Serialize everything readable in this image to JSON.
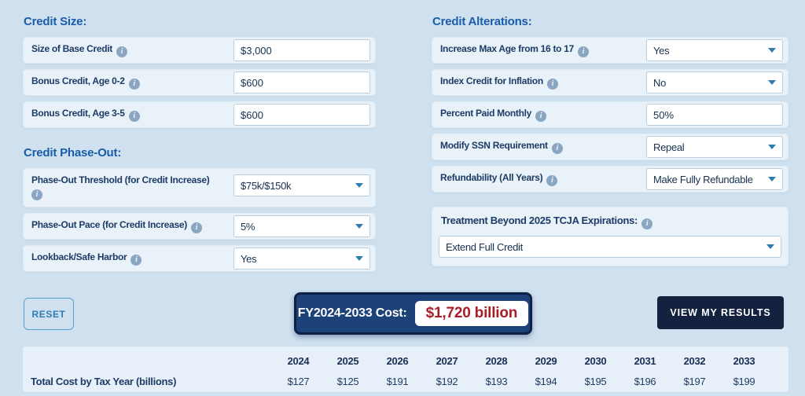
{
  "colors": {
    "page_bg": "#cfe1ef",
    "panel_bg": "#e9f1f9",
    "section_title_blue": "#1a5ca9",
    "label_navy": "#1d3c66",
    "cost_panel_navy": "#1d4179",
    "cost_panel_border": "#0d2145",
    "cost_value_red": "#ab1d28",
    "results_btn_navy": "#14213f",
    "reset_border_teal": "#55a1cd",
    "caret_blue": "#2e7cb0"
  },
  "sections": {
    "credit_size": {
      "title": "Credit Size:",
      "rows": [
        {
          "label": "Size of Base Credit",
          "value": "$3,000",
          "control": "input"
        },
        {
          "label": "Bonus Credit, Age 0-2",
          "value": "$600",
          "control": "input"
        },
        {
          "label": "Bonus Credit, Age 3-5",
          "value": "$600",
          "control": "input"
        }
      ]
    },
    "credit_phase_out": {
      "title": "Credit Phase-Out:",
      "rows": [
        {
          "label": "Phase-Out Threshold (for Credit Increase)",
          "value": "$75k/$150k",
          "control": "dropdown"
        },
        {
          "label": "Phase-Out Pace (for Credit Increase)",
          "value": "5%",
          "control": "dropdown"
        },
        {
          "label": "Lookback/Safe Harbor",
          "value": "Yes",
          "control": "dropdown"
        }
      ]
    },
    "credit_alterations": {
      "title": "Credit Alterations:",
      "rows": [
        {
          "label": "Increase Max Age from 16 to 17",
          "value": "Yes",
          "control": "dropdown"
        },
        {
          "label": "Index Credit for Inflation",
          "value": "No",
          "control": "dropdown"
        },
        {
          "label": "Percent Paid Monthly",
          "value": "50%",
          "control": "input"
        },
        {
          "label": "Modify SSN Requirement",
          "value": "Repeal",
          "control": "dropdown"
        },
        {
          "label": "Refundability (All Years)",
          "value": "Make Fully Refundable",
          "control": "dropdown"
        }
      ]
    },
    "tcja": {
      "title": "Treatment Beyond 2025 TCJA Expirations:",
      "value": "Extend Full Credit"
    }
  },
  "actions": {
    "reset": "RESET",
    "cost_label": "FY2024-2033 Cost:",
    "cost_value": "$1,720 billion",
    "view_results": "VIEW MY RESULTS"
  },
  "table": {
    "row_label": "Total Cost by Tax Year (billions)",
    "years": [
      "2024",
      "2025",
      "2026",
      "2027",
      "2028",
      "2029",
      "2030",
      "2031",
      "2032",
      "2033"
    ],
    "values": [
      "$127",
      "$125",
      "$191",
      "$192",
      "$193",
      "$194",
      "$195",
      "$196",
      "$197",
      "$199"
    ]
  }
}
